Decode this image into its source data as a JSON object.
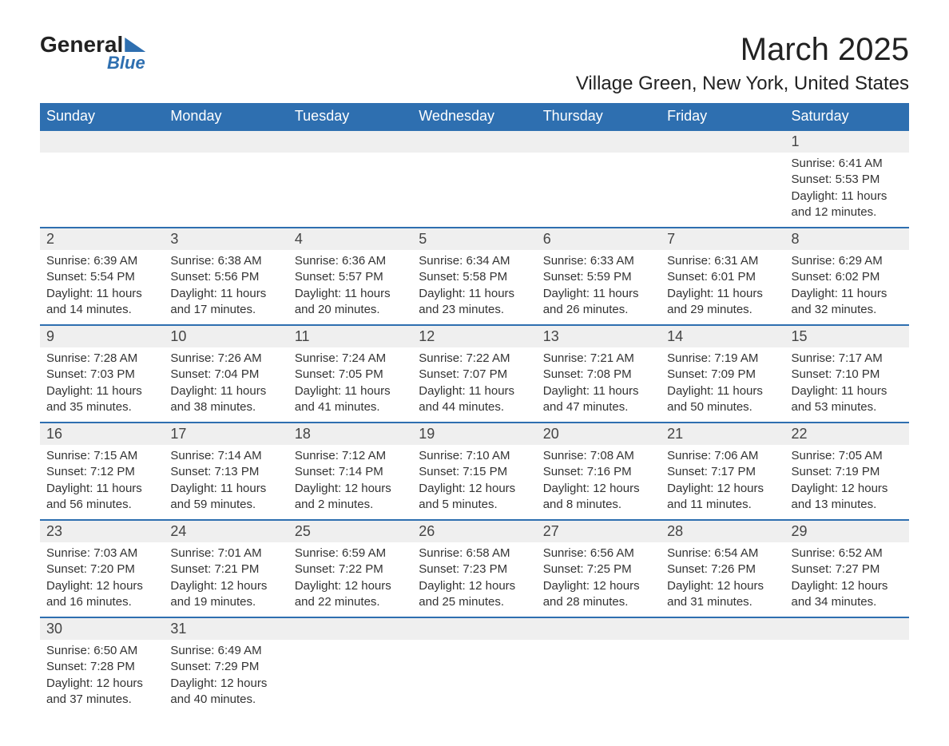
{
  "brand": {
    "word1": "General",
    "word2": "Blue",
    "accent_color": "#2e6fb0"
  },
  "title": "March 2025",
  "location": "Village Green, New York, United States",
  "weekdays": [
    "Sunday",
    "Monday",
    "Tuesday",
    "Wednesday",
    "Thursday",
    "Friday",
    "Saturday"
  ],
  "colors": {
    "header_bg": "#2e6fb0",
    "header_text": "#ffffff",
    "daynum_bg": "#efefef",
    "border_top": "#2e6fb0",
    "body_text": "#333333",
    "page_bg": "#ffffff"
  },
  "typography": {
    "month_title_fontsize": 40,
    "location_fontsize": 24,
    "weekday_fontsize": 18,
    "daynum_fontsize": 18,
    "body_fontsize": 15
  },
  "weeks": [
    [
      null,
      null,
      null,
      null,
      null,
      null,
      {
        "day": "1",
        "sunrise": "Sunrise: 6:41 AM",
        "sunset": "Sunset: 5:53 PM",
        "daylight": "Daylight: 11 hours and 12 minutes."
      }
    ],
    [
      {
        "day": "2",
        "sunrise": "Sunrise: 6:39 AM",
        "sunset": "Sunset: 5:54 PM",
        "daylight": "Daylight: 11 hours and 14 minutes."
      },
      {
        "day": "3",
        "sunrise": "Sunrise: 6:38 AM",
        "sunset": "Sunset: 5:56 PM",
        "daylight": "Daylight: 11 hours and 17 minutes."
      },
      {
        "day": "4",
        "sunrise": "Sunrise: 6:36 AM",
        "sunset": "Sunset: 5:57 PM",
        "daylight": "Daylight: 11 hours and 20 minutes."
      },
      {
        "day": "5",
        "sunrise": "Sunrise: 6:34 AM",
        "sunset": "Sunset: 5:58 PM",
        "daylight": "Daylight: 11 hours and 23 minutes."
      },
      {
        "day": "6",
        "sunrise": "Sunrise: 6:33 AM",
        "sunset": "Sunset: 5:59 PM",
        "daylight": "Daylight: 11 hours and 26 minutes."
      },
      {
        "day": "7",
        "sunrise": "Sunrise: 6:31 AM",
        "sunset": "Sunset: 6:01 PM",
        "daylight": "Daylight: 11 hours and 29 minutes."
      },
      {
        "day": "8",
        "sunrise": "Sunrise: 6:29 AM",
        "sunset": "Sunset: 6:02 PM",
        "daylight": "Daylight: 11 hours and 32 minutes."
      }
    ],
    [
      {
        "day": "9",
        "sunrise": "Sunrise: 7:28 AM",
        "sunset": "Sunset: 7:03 PM",
        "daylight": "Daylight: 11 hours and 35 minutes."
      },
      {
        "day": "10",
        "sunrise": "Sunrise: 7:26 AM",
        "sunset": "Sunset: 7:04 PM",
        "daylight": "Daylight: 11 hours and 38 minutes."
      },
      {
        "day": "11",
        "sunrise": "Sunrise: 7:24 AM",
        "sunset": "Sunset: 7:05 PM",
        "daylight": "Daylight: 11 hours and 41 minutes."
      },
      {
        "day": "12",
        "sunrise": "Sunrise: 7:22 AM",
        "sunset": "Sunset: 7:07 PM",
        "daylight": "Daylight: 11 hours and 44 minutes."
      },
      {
        "day": "13",
        "sunrise": "Sunrise: 7:21 AM",
        "sunset": "Sunset: 7:08 PM",
        "daylight": "Daylight: 11 hours and 47 minutes."
      },
      {
        "day": "14",
        "sunrise": "Sunrise: 7:19 AM",
        "sunset": "Sunset: 7:09 PM",
        "daylight": "Daylight: 11 hours and 50 minutes."
      },
      {
        "day": "15",
        "sunrise": "Sunrise: 7:17 AM",
        "sunset": "Sunset: 7:10 PM",
        "daylight": "Daylight: 11 hours and 53 minutes."
      }
    ],
    [
      {
        "day": "16",
        "sunrise": "Sunrise: 7:15 AM",
        "sunset": "Sunset: 7:12 PM",
        "daylight": "Daylight: 11 hours and 56 minutes."
      },
      {
        "day": "17",
        "sunrise": "Sunrise: 7:14 AM",
        "sunset": "Sunset: 7:13 PM",
        "daylight": "Daylight: 11 hours and 59 minutes."
      },
      {
        "day": "18",
        "sunrise": "Sunrise: 7:12 AM",
        "sunset": "Sunset: 7:14 PM",
        "daylight": "Daylight: 12 hours and 2 minutes."
      },
      {
        "day": "19",
        "sunrise": "Sunrise: 7:10 AM",
        "sunset": "Sunset: 7:15 PM",
        "daylight": "Daylight: 12 hours and 5 minutes."
      },
      {
        "day": "20",
        "sunrise": "Sunrise: 7:08 AM",
        "sunset": "Sunset: 7:16 PM",
        "daylight": "Daylight: 12 hours and 8 minutes."
      },
      {
        "day": "21",
        "sunrise": "Sunrise: 7:06 AM",
        "sunset": "Sunset: 7:17 PM",
        "daylight": "Daylight: 12 hours and 11 minutes."
      },
      {
        "day": "22",
        "sunrise": "Sunrise: 7:05 AM",
        "sunset": "Sunset: 7:19 PM",
        "daylight": "Daylight: 12 hours and 13 minutes."
      }
    ],
    [
      {
        "day": "23",
        "sunrise": "Sunrise: 7:03 AM",
        "sunset": "Sunset: 7:20 PM",
        "daylight": "Daylight: 12 hours and 16 minutes."
      },
      {
        "day": "24",
        "sunrise": "Sunrise: 7:01 AM",
        "sunset": "Sunset: 7:21 PM",
        "daylight": "Daylight: 12 hours and 19 minutes."
      },
      {
        "day": "25",
        "sunrise": "Sunrise: 6:59 AM",
        "sunset": "Sunset: 7:22 PM",
        "daylight": "Daylight: 12 hours and 22 minutes."
      },
      {
        "day": "26",
        "sunrise": "Sunrise: 6:58 AM",
        "sunset": "Sunset: 7:23 PM",
        "daylight": "Daylight: 12 hours and 25 minutes."
      },
      {
        "day": "27",
        "sunrise": "Sunrise: 6:56 AM",
        "sunset": "Sunset: 7:25 PM",
        "daylight": "Daylight: 12 hours and 28 minutes."
      },
      {
        "day": "28",
        "sunrise": "Sunrise: 6:54 AM",
        "sunset": "Sunset: 7:26 PM",
        "daylight": "Daylight: 12 hours and 31 minutes."
      },
      {
        "day": "29",
        "sunrise": "Sunrise: 6:52 AM",
        "sunset": "Sunset: 7:27 PM",
        "daylight": "Daylight: 12 hours and 34 minutes."
      }
    ],
    [
      {
        "day": "30",
        "sunrise": "Sunrise: 6:50 AM",
        "sunset": "Sunset: 7:28 PM",
        "daylight": "Daylight: 12 hours and 37 minutes."
      },
      {
        "day": "31",
        "sunrise": "Sunrise: 6:49 AM",
        "sunset": "Sunset: 7:29 PM",
        "daylight": "Daylight: 12 hours and 40 minutes."
      },
      null,
      null,
      null,
      null,
      null
    ]
  ]
}
